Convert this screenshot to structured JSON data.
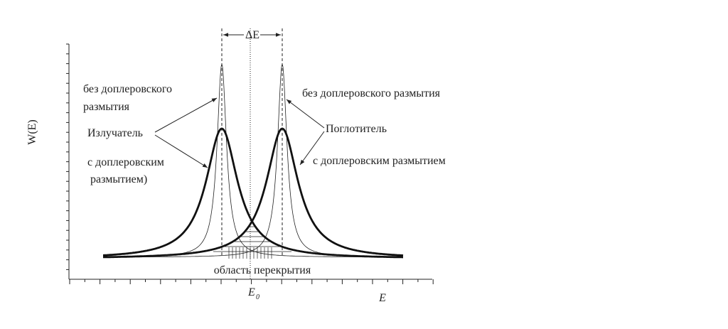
{
  "axes": {
    "y_label": "W(E)",
    "x_label": "E",
    "center_label": {
      "main": "E",
      "sub": "0"
    }
  },
  "delta_label": "ΔE",
  "emitter": {
    "label": "Излучатель",
    "narrow": [
      "без доплеровского",
      "размытия"
    ],
    "broad": [
      "с доплеровским",
      "размытием)"
    ]
  },
  "absorber": {
    "label": "Поглотитель",
    "narrow": "без доплеровского размытия",
    "broad": "с доплеровским размытием"
  },
  "overlap_label": "область перекрытия"
}
